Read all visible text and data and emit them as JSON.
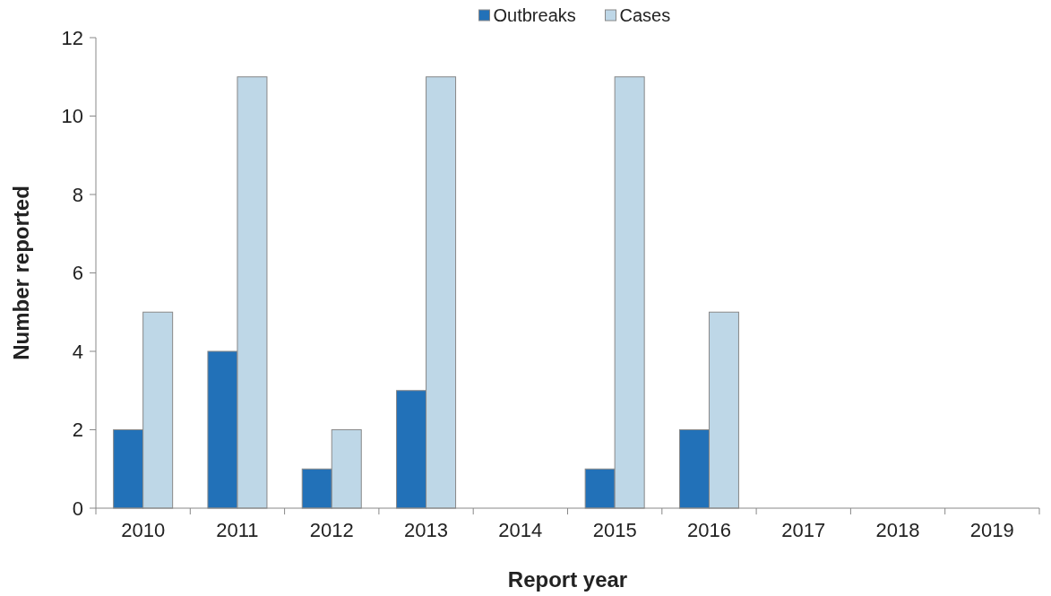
{
  "chart_data": {
    "type": "bar",
    "xlabel": "Report year",
    "ylabel": "Number reported",
    "categories": [
      "2010",
      "2011",
      "2012",
      "2013",
      "2014",
      "2015",
      "2016",
      "2017",
      "2018",
      "2019"
    ],
    "series": [
      {
        "name": "Outbreaks",
        "color": "#2271b8",
        "values": [
          2,
          4,
          1,
          3,
          0,
          1,
          2,
          0,
          0,
          0
        ]
      },
      {
        "name": "Cases",
        "color": "#bed7e7",
        "values": [
          5,
          11,
          2,
          11,
          0,
          11,
          5,
          0,
          0,
          0
        ]
      }
    ],
    "ylim": [
      0,
      12
    ],
    "yticks": [
      0,
      2,
      4,
      6,
      8,
      10,
      12
    ],
    "grid": false,
    "legend": "top"
  }
}
